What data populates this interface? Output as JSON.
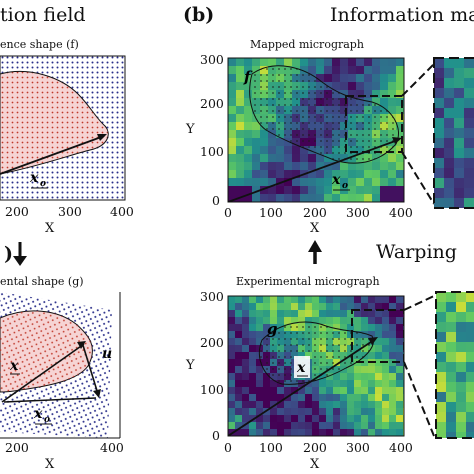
{
  "header": {
    "left_title": "tion field",
    "panel_b_letter": "(b)",
    "right_title": "Information map"
  },
  "left_panel": {
    "top_subtitle": "ence shape (f)",
    "top_ticks_x": [
      "200",
      "300",
      "400"
    ],
    "top_xlabel": "X",
    "top_point_label": "x_o",
    "mid_panel_letter": ")",
    "bottom_subtitle": "ental shape (g)",
    "bottom_x_label": "x",
    "bottom_u_label": "u",
    "bottom_xo_label": "x_o",
    "bottom_ticks_x": [
      "200",
      "400"
    ],
    "bottom_xlabel": "X"
  },
  "mapped": {
    "title": "Mapped micrograph",
    "ylabel": "Y",
    "xlabel": "X",
    "y_ticks": [
      "300",
      "200",
      "100",
      "0"
    ],
    "x_ticks": [
      "0",
      "100",
      "200",
      "300",
      "400"
    ],
    "shape_label": "f",
    "point_label": "x_o"
  },
  "warping": {
    "label": "Warping"
  },
  "experimental": {
    "title": "Experimental micrograph",
    "ylabel": "Y",
    "xlabel": "X",
    "y_ticks": [
      "300",
      "200",
      "100",
      "0"
    ],
    "x_ticks": [
      "0",
      "100",
      "200",
      "300",
      "400"
    ],
    "shape_label": "g",
    "point_label": "x"
  },
  "colors": {
    "viridis_low": "#3b1a8a",
    "viridis_mid": "#21a6b0",
    "viridis_high": "#f5d52a",
    "shape_fill": "#f6d4d4",
    "dot_blue": "#2a2f8a",
    "dot_red": "#c0392b"
  }
}
